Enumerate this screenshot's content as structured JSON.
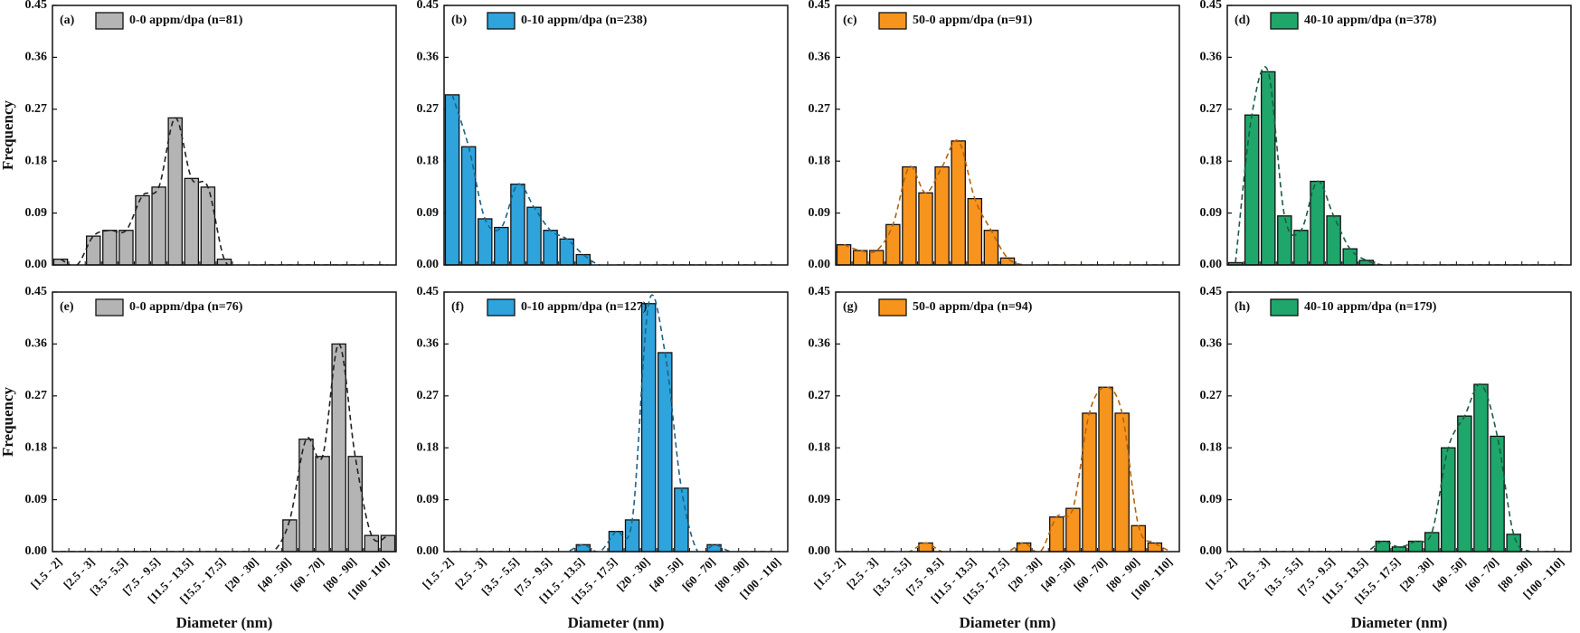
{
  "chart_data": [
    {
      "type": "bar",
      "label": "(a)",
      "ylabel": "Frequency",
      "ylim": [
        0,
        0.45
      ],
      "yticks": [
        {
          "value": 0,
          "label": "0.00"
        },
        0.09,
        0.18,
        0.27,
        0.36,
        0.45
      ],
      "curve_color": "#222222",
      "series": [
        {
          "name": "0-0 appm/dpa (n=81)",
          "color": "#b4b4b4",
          "values": [
            0.01,
            0,
            0.05,
            0.06,
            0.06,
            0.12,
            0.135,
            0.255,
            0.15,
            0.135,
            0.01,
            0,
            0,
            0,
            0,
            0,
            0,
            0,
            0,
            0,
            0
          ]
        }
      ]
    },
    {
      "type": "bar",
      "label": "(b)",
      "ylim": [
        0,
        0.45
      ],
      "yticks": [
        {
          "value": 0,
          "label": "0.00"
        },
        0.09,
        0.18,
        0.27,
        0.36,
        0.45
      ],
      "curve_color": "#1d6384",
      "series": [
        {
          "name": "0-10 appm/dpa (n=238)",
          "color": "#2ea3dc",
          "values": [
            0.295,
            0.205,
            0.08,
            0.065,
            0.14,
            0.1,
            0.06,
            0.045,
            0.018,
            0,
            0,
            0,
            0,
            0,
            0,
            0,
            0,
            0,
            0,
            0,
            0
          ]
        }
      ]
    },
    {
      "type": "bar",
      "label": "(c)",
      "ylim": [
        0,
        0.45
      ],
      "yticks": [
        {
          "value": 0,
          "label": "0.00"
        },
        0.09,
        0.18,
        0.27,
        0.36,
        0.45
      ],
      "curve_color": "#b5630f",
      "series": [
        {
          "name": "50-0 appm/dpa (n=91)",
          "color": "#f7941d",
          "values": [
            0.035,
            0.025,
            0.025,
            0.07,
            0.17,
            0.125,
            0.17,
            0.215,
            0.115,
            0.06,
            0.012,
            0,
            0,
            0,
            0,
            0,
            0,
            0,
            0,
            0,
            0
          ]
        }
      ]
    },
    {
      "type": "bar",
      "label": "(d)",
      "ylim": [
        0,
        0.45
      ],
      "yticks": [
        {
          "value": 0,
          "label": "0.00"
        },
        0.09,
        0.18,
        0.27,
        0.36,
        0.45
      ],
      "curve_color": "#1b5e42",
      "series": [
        {
          "name": "40-10 appm/dpa (n=378)",
          "color": "#1fa66a",
          "values": [
            0.004,
            0.26,
            0.335,
            0.085,
            0.06,
            0.145,
            0.085,
            0.028,
            0.008,
            0,
            0,
            0,
            0,
            0,
            0,
            0,
            0,
            0,
            0,
            0,
            0
          ]
        }
      ]
    },
    {
      "type": "bar",
      "label": "(e)",
      "ylabel": "Frequency",
      "xlabel": "Diameter (nm)",
      "ylim": [
        0,
        0.45
      ],
      "yticks": [
        {
          "value": 0,
          "label": "0.00"
        },
        0.09,
        0.18,
        0.27,
        0.36,
        0.45
      ],
      "curve_color": "#222222",
      "categories": [
        "[1.5 - 2]",
        null,
        "[2.5 - 3]",
        null,
        "[3.5 - 5.5]",
        null,
        "[7.5 - 9.5]",
        null,
        "[11.5 - 13.5]",
        null,
        "[15.5 - 17.5]",
        null,
        "[20 - 30]",
        null,
        "[40 - 50]",
        null,
        "[60 - 70]",
        null,
        "[80 - 90]",
        null,
        "[100 - 110]"
      ],
      "series": [
        {
          "name": "0-0 appm/dpa (n=76)",
          "color": "#b4b4b4",
          "values": [
            0,
            0,
            0,
            0,
            0,
            0,
            0,
            0,
            0,
            0,
            0,
            0,
            0,
            0,
            0.055,
            0.195,
            0.165,
            0.36,
            0.165,
            0.028,
            0.028
          ]
        }
      ]
    },
    {
      "type": "bar",
      "label": "(f)",
      "xlabel": "Diameter (nm)",
      "ylim": [
        0,
        0.45
      ],
      "yticks": [
        {
          "value": 0,
          "label": "0.00"
        },
        0.09,
        0.18,
        0.27,
        0.36,
        0.45
      ],
      "curve_color": "#1d6384",
      "categories": [
        "[1.5 - 2]",
        null,
        "[2.5 - 3]",
        null,
        "[3.5 - 5.5]",
        null,
        "[7.5 - 9.5]",
        null,
        "[11.5 - 13.5]",
        null,
        "[15.5 - 17.5]",
        null,
        "[20 - 30]",
        null,
        "[40 - 50]",
        null,
        "[60 - 70]",
        null,
        "[80 - 90]",
        null,
        "[100 - 110]"
      ],
      "series": [
        {
          "name": "0-10 appm/dpa (n=127)",
          "color": "#2ea3dc",
          "values": [
            0,
            0,
            0,
            0,
            0,
            0,
            0,
            0,
            0.012,
            0,
            0.035,
            0.055,
            0.43,
            0.345,
            0.11,
            0,
            0.012,
            0,
            0,
            0,
            0
          ]
        }
      ]
    },
    {
      "type": "bar",
      "label": "(g)",
      "xlabel": "Diameter (nm)",
      "ylim": [
        0,
        0.45
      ],
      "yticks": [
        {
          "value": 0,
          "label": "0.00"
        },
        0.09,
        0.18,
        0.27,
        0.36,
        0.45
      ],
      "curve_color": "#b5630f",
      "categories": [
        "[1.5 - 2]",
        null,
        "[2.5 - 3]",
        null,
        "[3.5 - 5.5]",
        null,
        "[7.5 - 9.5]",
        null,
        "[11.5 - 13.5]",
        null,
        "[15.5 - 17.5]",
        null,
        "[20 - 30]",
        null,
        "[40 - 50]",
        null,
        "[60 - 70]",
        null,
        "[80 - 90]",
        null,
        "[100 - 110]"
      ],
      "series": [
        {
          "name": "50-0 appm/dpa (n=94)",
          "color": "#f7941d",
          "values": [
            0,
            0,
            0,
            0,
            0,
            0.015,
            0,
            0,
            0,
            0,
            0,
            0.015,
            0,
            0.06,
            0.075,
            0.24,
            0.285,
            0.24,
            0.045,
            0.015,
            0
          ]
        }
      ]
    },
    {
      "type": "bar",
      "label": "(h)",
      "xlabel": "Diameter (nm)",
      "ylim": [
        0,
        0.45
      ],
      "yticks": [
        {
          "value": 0,
          "label": "0.00"
        },
        0.09,
        0.18,
        0.27,
        0.36,
        0.45
      ],
      "curve_color": "#1b5e42",
      "categories": [
        "[1.5 - 2]",
        null,
        "[2.5 - 3]",
        null,
        "[3.5 - 5.5]",
        null,
        "[7.5 - 9.5]",
        null,
        "[11.5 - 13.5]",
        null,
        "[15.5 - 17.5]",
        null,
        "[20 - 30]",
        null,
        "[40 - 50]",
        null,
        "[60 - 70]",
        null,
        "[80 - 90]",
        null,
        "[100 - 110]"
      ],
      "series": [
        {
          "name": "40-10 appm/dpa (n=179)",
          "color": "#1fa66a",
          "values": [
            0,
            0,
            0,
            0,
            0,
            0,
            0,
            0,
            0,
            0.018,
            0.008,
            0.018,
            0.033,
            0.18,
            0.235,
            0.29,
            0.2,
            0.03,
            0,
            0,
            0
          ]
        }
      ]
    }
  ]
}
